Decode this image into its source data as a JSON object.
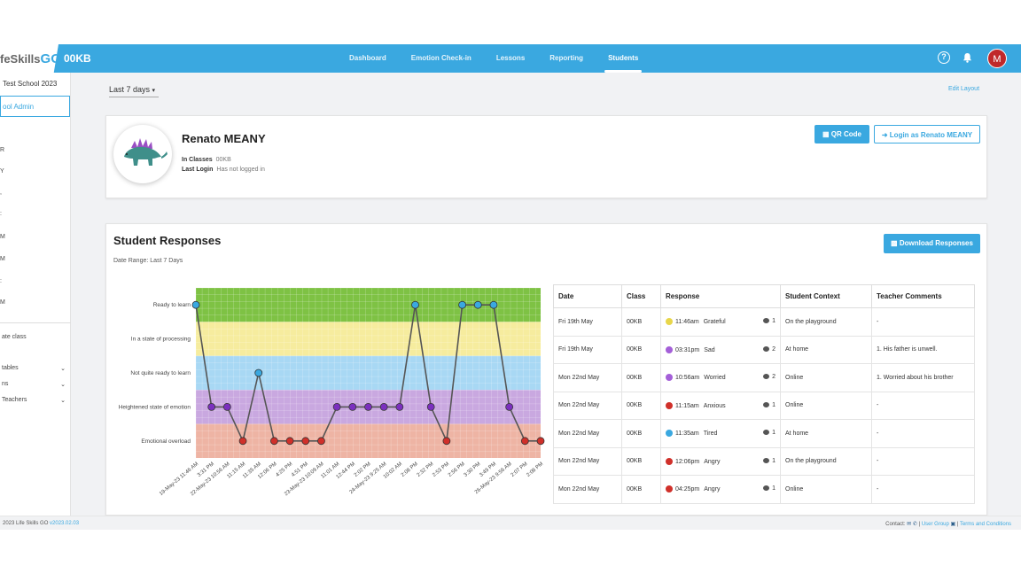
{
  "topbar": {
    "logo_prefix": "feSkills",
    "logo_go": "GO",
    "class_code": "00KB",
    "nav": [
      "Dashboard",
      "Emotion Check-in",
      "Lessons",
      "Reporting",
      "Students"
    ],
    "active_nav": "Students",
    "help": "?",
    "avatar_initial": "M",
    "accent": "#3aa8e0",
    "avatar_color": "#c0282a"
  },
  "sidebar": {
    "school": "Test School 2023",
    "admin": "ool Admin",
    "items": [
      "R",
      "Y",
      ",",
      ":",
      "M",
      "M",
      ":",
      "M"
    ],
    "create_class": "ate class",
    "menus": [
      "tables",
      "ns",
      "Teachers"
    ]
  },
  "filter": {
    "label": "Last 7 days"
  },
  "edit_layout": "Edit Layout",
  "profile": {
    "name": "Renato MEANY",
    "in_classes_label": "In Classes",
    "in_classes_value": "00KB",
    "last_login_label": "Last Login",
    "last_login_value": "Has not logged in",
    "qr_button": "QR Code",
    "login_as_button": "Login as Renato MEANY"
  },
  "responses_section": {
    "title": "Student Responses",
    "date_range": "Date Range: Last 7 Days",
    "download_button": "Download Responses"
  },
  "chart_data": {
    "type": "line",
    "y_categories": [
      "Emotional overload",
      "Heightened state of emotion",
      "Not quite ready to learn",
      "In a state of processing",
      "Ready to learn"
    ],
    "band_colors": [
      "#eeb4a4",
      "#c9a8e0",
      "#a8d8f4",
      "#f6ec9e",
      "#7ec244"
    ],
    "x": [
      "19-May-23 11:46 AM",
      "3:31 PM",
      "22-May-23 10:56 AM",
      "11:15 AM",
      "11:35 AM",
      "12:06 PM",
      "4:25 PM",
      "4:51 PM",
      "23-May-23 10:09 AM",
      "11:01 AM",
      "12:44 PM",
      "2:02 PM",
      "24-May-23 9:25 AM",
      "10:02 AM",
      "2:08 PM",
      "2:32 PM",
      "2:53 PM",
      "2:56 PM",
      "3:30 PM",
      "3:49 PM",
      "26-May-23 9:56 AM",
      "2:07 PM",
      "2:08 PM"
    ],
    "values": [
      4,
      1,
      1,
      0,
      2,
      0,
      0,
      0,
      0,
      1,
      1,
      1,
      1,
      1,
      4,
      1,
      0,
      4,
      4,
      4,
      1,
      0,
      0
    ],
    "point_colors": [
      "#3aa8e0",
      "#7b2fbf",
      "#7b2fbf",
      "#d0302a",
      "#3aa8e0",
      "#d0302a",
      "#d0302a",
      "#d0302a",
      "#d0302a",
      "#7b2fbf",
      "#7b2fbf",
      "#7b2fbf",
      "#7b2fbf",
      "#7b2fbf",
      "#3aa8e0",
      "#7b2fbf",
      "#d0302a",
      "#3aa8e0",
      "#3aa8e0",
      "#3aa8e0",
      "#7b2fbf",
      "#d0302a",
      "#d0302a"
    ],
    "grid": true
  },
  "table": {
    "headers": [
      "Date",
      "Class",
      "Response",
      "Student Context",
      "Teacher Comments"
    ],
    "rows": [
      {
        "date": "Fri 19th May",
        "class": "00KB",
        "time": "11:46am",
        "emotion": "Grateful",
        "color": "#e8d64a",
        "count": "1",
        "context": "On the playground",
        "comment": "-"
      },
      {
        "date": "Fri 19th May",
        "class": "00KB",
        "time": "03:31pm",
        "emotion": "Sad",
        "color": "#a45fd8",
        "count": "2",
        "context": "At home",
        "comment": "1. His father is unwell."
      },
      {
        "date": "Mon 22nd May",
        "class": "00KB",
        "time": "10:56am",
        "emotion": "Worried",
        "color": "#a45fd8",
        "count": "2",
        "context": "Online",
        "comment": "1. Worried about his brother"
      },
      {
        "date": "Mon 22nd May",
        "class": "00KB",
        "time": "11:15am",
        "emotion": "Anxious",
        "color": "#d0302a",
        "count": "1",
        "context": "Online",
        "comment": "-"
      },
      {
        "date": "Mon 22nd May",
        "class": "00KB",
        "time": "11:35am",
        "emotion": "Tired",
        "color": "#3aa8e0",
        "count": "1",
        "context": "At home",
        "comment": "-"
      },
      {
        "date": "Mon 22nd May",
        "class": "00KB",
        "time": "12:06pm",
        "emotion": "Angry",
        "color": "#d0302a",
        "count": "1",
        "context": "On the playground",
        "comment": "-"
      },
      {
        "date": "Mon 22nd May",
        "class": "00KB",
        "time": "04:25pm",
        "emotion": "Angry",
        "color": "#d0302a",
        "count": "1",
        "context": "Online",
        "comment": "-"
      }
    ]
  },
  "footer": {
    "copyright": "2023 Life Skills GO",
    "version": "v2023.02.03",
    "contact": "Contact:",
    "user_group": "User Group",
    "terms": "Terms and Conditions"
  }
}
